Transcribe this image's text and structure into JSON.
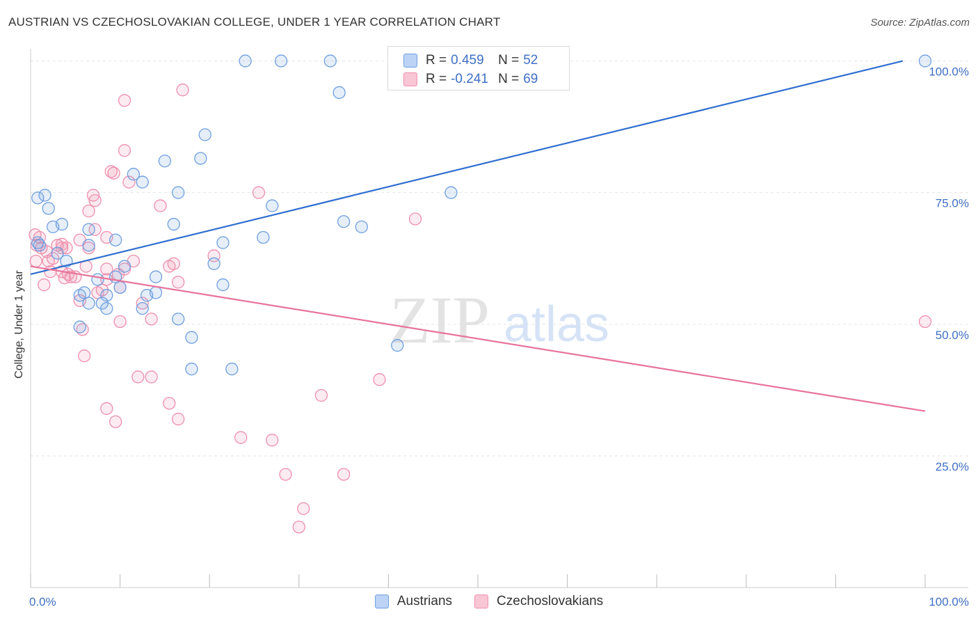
{
  "header": {
    "title": "AUSTRIAN VS CZECHOSLOVAKIAN COLLEGE, UNDER 1 YEAR CORRELATION CHART",
    "source": "Source: ZipAtlas.com"
  },
  "watermark": {
    "zip": "ZIP",
    "atlas": "atlas"
  },
  "legend_top": [
    {
      "r_label": "R =",
      "r_value": "0.459",
      "n_label": "N =",
      "n_value": "52"
    },
    {
      "r_label": "R =",
      "r_value": "-0.241",
      "n_label": "N =",
      "n_value": "69"
    }
  ],
  "legend_bottom": [
    "Austrians",
    "Czechoslovakians"
  ],
  "chart_data": {
    "type": "scatter",
    "title": "AUSTRIAN VS CZECHOSLOVAKIAN COLLEGE, UNDER 1 YEAR CORRELATION CHART",
    "xlabel": "",
    "ylabel": "College, Under 1 year",
    "xlim": [
      0,
      100
    ],
    "ylim": [
      0,
      101
    ],
    "x_tick_labels": [
      {
        "value": 0,
        "label": "0.0%"
      },
      {
        "value": 100,
        "label": "100.0%"
      }
    ],
    "y_tick_labels": [
      {
        "value": 25,
        "label": "25.0%"
      },
      {
        "value": 50,
        "label": "50.0%"
      },
      {
        "value": 75,
        "label": "75.0%"
      },
      {
        "value": 100,
        "label": "100.0%"
      }
    ],
    "grid": true,
    "colors": {
      "austrians": "#6f9fe0",
      "czech": "#ee8fae",
      "austrians_line": "#2f6ecf",
      "czech_line": "#e8739b",
      "tick_text": "#3f6fc4"
    },
    "series": [
      {
        "name": "Austrians",
        "r": 0.459,
        "n": 52,
        "trend": [
          [
            0,
            59.5
          ],
          [
            97.5,
            100
          ]
        ],
        "points": [
          [
            24,
            100
          ],
          [
            28,
            100
          ],
          [
            33.5,
            100
          ],
          [
            100,
            100
          ],
          [
            34.5,
            94
          ],
          [
            19.5,
            86
          ],
          [
            19,
            81.5
          ],
          [
            15,
            81
          ],
          [
            11.5,
            78.5
          ],
          [
            12.5,
            77
          ],
          [
            16.5,
            75
          ],
          [
            47,
            75
          ],
          [
            0.8,
            74
          ],
          [
            1.6,
            74.5
          ],
          [
            2,
            72
          ],
          [
            27,
            72.5
          ],
          [
            3.5,
            69
          ],
          [
            2.5,
            68.5
          ],
          [
            16,
            69
          ],
          [
            35,
            69.5
          ],
          [
            37,
            68.5
          ],
          [
            6.5,
            68
          ],
          [
            9.5,
            66
          ],
          [
            26,
            66.5
          ],
          [
            0.8,
            65.5
          ],
          [
            21.5,
            65.5
          ],
          [
            1,
            65
          ],
          [
            6.5,
            65
          ],
          [
            3,
            63.5
          ],
          [
            4,
            62
          ],
          [
            10.5,
            61
          ],
          [
            20.5,
            61.5
          ],
          [
            9.5,
            59
          ],
          [
            14,
            59
          ],
          [
            7.5,
            58.5
          ],
          [
            10,
            57
          ],
          [
            21.5,
            57.5
          ],
          [
            6,
            56
          ],
          [
            14,
            56
          ],
          [
            5.5,
            55.5
          ],
          [
            8.5,
            55.5
          ],
          [
            13,
            55.5
          ],
          [
            6.5,
            54
          ],
          [
            8,
            54
          ],
          [
            12.5,
            53
          ],
          [
            8.5,
            53
          ],
          [
            16.5,
            51
          ],
          [
            5.5,
            49.5
          ],
          [
            18,
            47.5
          ],
          [
            41,
            46
          ],
          [
            18,
            41.5
          ],
          [
            22.5,
            41.5
          ]
        ]
      },
      {
        "name": "Czechoslovakians",
        "r": -0.241,
        "n": 69,
        "trend": [
          [
            0,
            61
          ],
          [
            100,
            33.5
          ]
        ],
        "points": [
          [
            17,
            94.5
          ],
          [
            10.5,
            92.5
          ],
          [
            10.5,
            83
          ],
          [
            9,
            79
          ],
          [
            9.3,
            78.7
          ],
          [
            11,
            77
          ],
          [
            25.5,
            75
          ],
          [
            7,
            74.5
          ],
          [
            7.2,
            73.5
          ],
          [
            14.5,
            72.5
          ],
          [
            6.5,
            71.5
          ],
          [
            43,
            70
          ],
          [
            7.2,
            68
          ],
          [
            0.5,
            67
          ],
          [
            1,
            66.5
          ],
          [
            5.5,
            66
          ],
          [
            8.5,
            66.5
          ],
          [
            0.7,
            65
          ],
          [
            3,
            65
          ],
          [
            3.5,
            64.5
          ],
          [
            4,
            64.5
          ],
          [
            6.5,
            64.5
          ],
          [
            1.2,
            64.5
          ],
          [
            2.5,
            62.5
          ],
          [
            0.6,
            62
          ],
          [
            2,
            62
          ],
          [
            11.5,
            62
          ],
          [
            20.5,
            63
          ],
          [
            15.5,
            61
          ],
          [
            16,
            61.5
          ],
          [
            2.2,
            60
          ],
          [
            3.5,
            60
          ],
          [
            4.2,
            59.5
          ],
          [
            8.5,
            60.5
          ],
          [
            10.5,
            60.5
          ],
          [
            4.5,
            59
          ],
          [
            5,
            59
          ],
          [
            3.8,
            58.8
          ],
          [
            1.5,
            57.5
          ],
          [
            8.5,
            58.5
          ],
          [
            16.5,
            58
          ],
          [
            10,
            57
          ],
          [
            8,
            56.5
          ],
          [
            7.5,
            56
          ],
          [
            5.5,
            54.5
          ],
          [
            12.5,
            54
          ],
          [
            13.5,
            51
          ],
          [
            10,
            50.5
          ],
          [
            5.8,
            49
          ],
          [
            100,
            50.5
          ],
          [
            6,
            44
          ],
          [
            12,
            40
          ],
          [
            13.5,
            40
          ],
          [
            39,
            39.5
          ],
          [
            32.5,
            36.5
          ],
          [
            15.5,
            35
          ],
          [
            8.5,
            34
          ],
          [
            9.5,
            31.5
          ],
          [
            16.5,
            32
          ],
          [
            23.5,
            28.5
          ],
          [
            27,
            28
          ],
          [
            28.5,
            21.5
          ],
          [
            35,
            21.5
          ],
          [
            30.5,
            15
          ],
          [
            30,
            11.5
          ],
          [
            3.5,
            65.2
          ],
          [
            1.8,
            63.8
          ],
          [
            9.8,
            59.5
          ],
          [
            6.2,
            61
          ]
        ]
      }
    ]
  }
}
